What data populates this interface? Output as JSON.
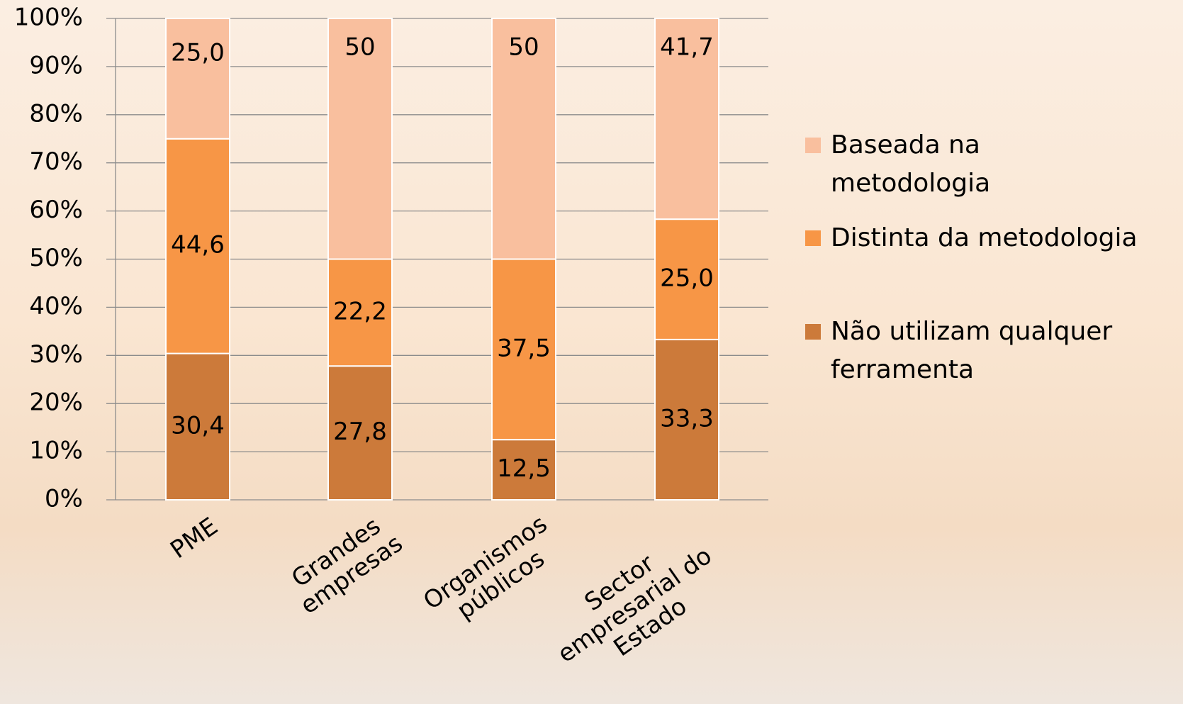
{
  "chart_data": {
    "type": "stacked_bar",
    "categories": [
      "PME",
      "Grandes empresas",
      "Organismos públicos",
      "Sector empresarial do Estado"
    ],
    "series": [
      {
        "name": "Não utilizam qualquer ferramenta",
        "color": "#cc7a3a",
        "values": [
          30.4,
          27.8,
          12.5,
          33.3
        ],
        "value_labels": [
          "30,4",
          "27,8",
          "12,5",
          "33,3"
        ]
      },
      {
        "name": "Distinta da metodologia",
        "color": "#f79646",
        "values": [
          44.6,
          22.2,
          37.5,
          25.0
        ],
        "value_labels": [
          "44,6",
          "22,2",
          "37,5",
          "25,0"
        ]
      },
      {
        "name": "Baseada na metodologia",
        "color": "#f9bf9e",
        "values": [
          25.0,
          50,
          50,
          41.7
        ],
        "value_labels": [
          "25,0",
          "50",
          "50",
          "41,7"
        ]
      }
    ],
    "ylim": [
      0,
      100
    ],
    "yticks": [
      {
        "value": 0,
        "label": "0%"
      },
      {
        "value": 10,
        "label": "10%"
      },
      {
        "value": 20,
        "label": "20%"
      },
      {
        "value": 30,
        "label": "30%"
      },
      {
        "value": 40,
        "label": "40%"
      },
      {
        "value": 50,
        "label": "50%"
      },
      {
        "value": 60,
        "label": "60%"
      },
      {
        "value": 70,
        "label": "70%"
      },
      {
        "value": 80,
        "label": "80%"
      },
      {
        "value": 90,
        "label": "90%"
      },
      {
        "value": 100,
        "label": "100%"
      }
    ],
    "grid": true,
    "legend": "right"
  }
}
